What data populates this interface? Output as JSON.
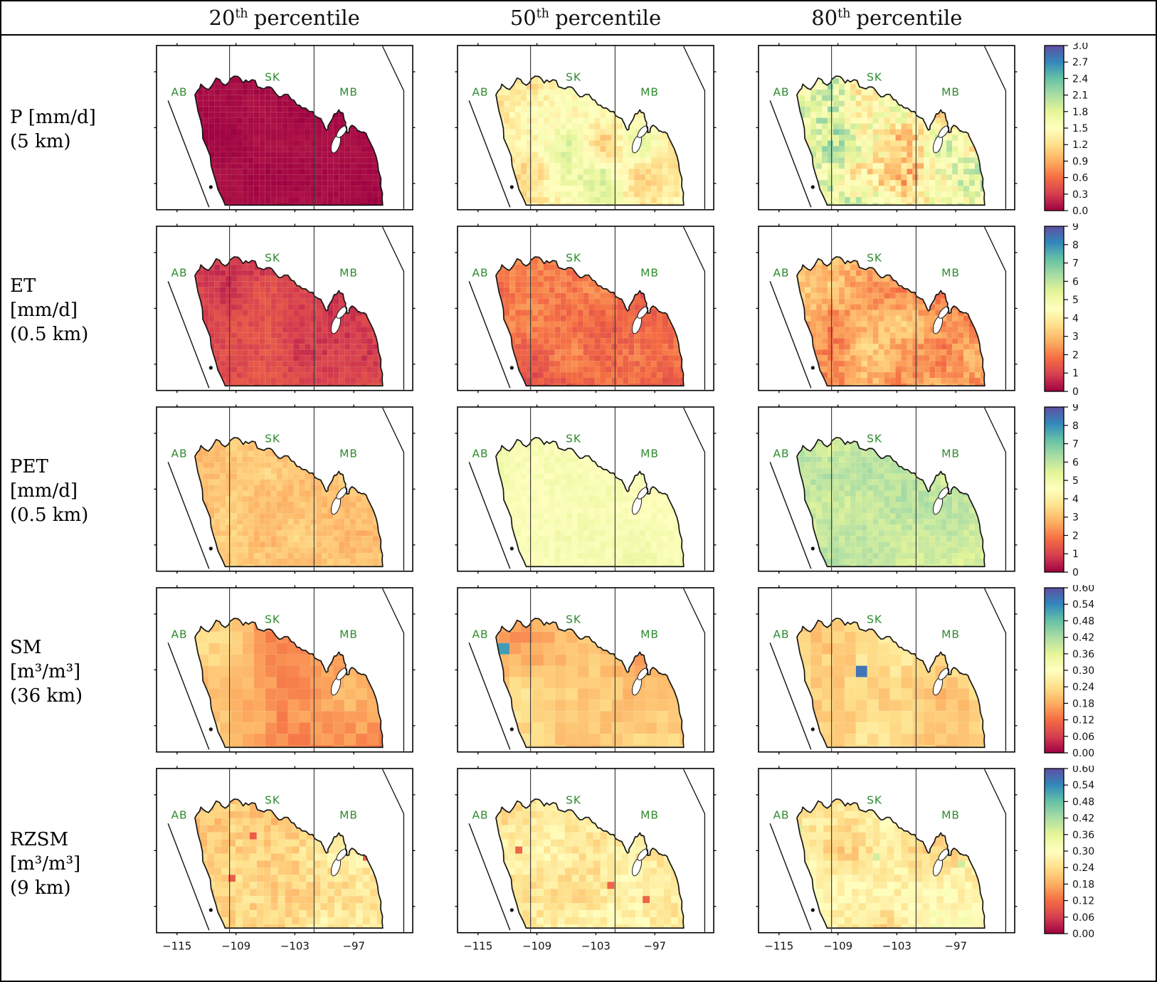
{
  "figure": {
    "column_titles": [
      {
        "num": "20",
        "sup": "th",
        "rest": "percentile"
      },
      {
        "num": "50",
        "sup": "th",
        "rest": "percentile"
      },
      {
        "num": "80",
        "sup": "th",
        "rest": "percentile"
      }
    ],
    "province_labels": [
      "AB",
      "SK",
      "MB"
    ],
    "province_label_color": "#2e8b2e"
  },
  "chart_data": {
    "type": "heatmap",
    "layout": "5 variable rows x 3 percentile columns of Canadian Prairie maps (AB/SK/MB), one shared colorbar per row, x tick labels on bottom row only",
    "x_tick_labels": [
      "−115",
      "−109",
      "−103",
      "−97"
    ],
    "colormap": {
      "name": "Spectral (reversed: low=dark red, high=blue/purple)",
      "stops": [
        "#9e0142",
        "#d53e4f",
        "#f46d43",
        "#fdae61",
        "#fee08b",
        "#ffffbf",
        "#e6f598",
        "#abdda4",
        "#66c2a5",
        "#3288bd",
        "#5e4fa2"
      ]
    },
    "rows": [
      {
        "variable": "P",
        "label_lines": [
          "P [mm/d]",
          "(5 km)"
        ],
        "resolution_km": 5,
        "colorbar": {
          "min": 0.0,
          "max": 3.0,
          "tick_labels": [
            "3.0",
            "2.7",
            "2.4",
            "2.1",
            "1.8",
            "1.5",
            "1.2",
            "0.9",
            "0.6",
            "0.3",
            "0.0"
          ]
        },
        "panels": [
          {
            "percentile": 20,
            "approx_mean": 0.05,
            "approx_spread": 0.04,
            "speckle": 0.03
          },
          {
            "percentile": 50,
            "approx_mean": 1.45,
            "approx_spread": 0.38,
            "speckle": 0.16
          },
          {
            "percentile": 80,
            "approx_mean": 1.5,
            "approx_spread": 0.55,
            "speckle": 0.35,
            "west_bias": 0.55
          }
        ]
      },
      {
        "variable": "ET",
        "label_lines": [
          "ET",
          "[mm/d]",
          "(0.5 km)"
        ],
        "resolution_km": 0.5,
        "colorbar": {
          "min": 0,
          "max": 9,
          "tick_labels": [
            "9",
            "8",
            "7",
            "6",
            "5",
            "4",
            "3",
            "2",
            "1",
            "0"
          ]
        },
        "panels": [
          {
            "percentile": 20,
            "approx_mean": 1.0,
            "approx_spread": 0.35,
            "speckle": 0.25
          },
          {
            "percentile": 50,
            "approx_mean": 1.7,
            "approx_spread": 0.5,
            "speckle": 0.35
          },
          {
            "percentile": 80,
            "approx_mean": 2.6,
            "approx_spread": 0.6,
            "speckle": 0.5
          }
        ]
      },
      {
        "variable": "PET",
        "label_lines": [
          "PET",
          "[mm/d]",
          "(0.5 km)"
        ],
        "resolution_km": 0.5,
        "colorbar": {
          "min": 0,
          "max": 9,
          "tick_labels": [
            "9",
            "8",
            "7",
            "6",
            "5",
            "4",
            "3",
            "2",
            "1",
            "0"
          ]
        },
        "panels": [
          {
            "percentile": 20,
            "approx_mean": 3.1,
            "approx_spread": 0.3,
            "speckle": 0.28
          },
          {
            "percentile": 50,
            "approx_mean": 4.7,
            "approx_spread": 0.3,
            "speckle": 0.25
          },
          {
            "percentile": 80,
            "approx_mean": 5.9,
            "approx_spread": 0.35,
            "speckle": 0.3
          }
        ]
      },
      {
        "variable": "SM",
        "label_lines": [
          "SM",
          "[m³/m³]",
          "(36 km)"
        ],
        "resolution_km": 36,
        "colorbar": {
          "min": 0.0,
          "max": 0.6,
          "tick_labels": [
            "0.60",
            "0.54",
            "0.48",
            "0.42",
            "0.36",
            "0.30",
            "0.24",
            "0.18",
            "0.12",
            "0.06",
            "0.00"
          ]
        },
        "panels": [
          {
            "percentile": 20,
            "approx_mean": 0.185,
            "approx_spread": 0.055,
            "speckle": 0.02
          },
          {
            "percentile": 50,
            "approx_mean": 0.205,
            "approx_spread": 0.045,
            "speckle": 0.02,
            "outliers": {
              "prob": 0.006,
              "value": 0.52
            }
          },
          {
            "percentile": 80,
            "approx_mean": 0.235,
            "approx_spread": 0.05,
            "speckle": 0.025,
            "outliers": {
              "prob": 0.012,
              "value": 0.56
            }
          }
        ]
      },
      {
        "variable": "RZSM",
        "label_lines": [
          "RZSM",
          "[m³/m³]",
          "(9 km)"
        ],
        "resolution_km": 9,
        "colorbar": {
          "min": 0.0,
          "max": 0.6,
          "tick_labels": [
            "0.60",
            "0.54",
            "0.48",
            "0.42",
            "0.36",
            "0.30",
            "0.24",
            "0.18",
            "0.12",
            "0.06",
            "0.00"
          ]
        },
        "panels": [
          {
            "percentile": 20,
            "approx_mean": 0.235,
            "approx_spread": 0.04,
            "speckle": 0.03,
            "outliers": {
              "prob": 0.012,
              "value": 0.1
            }
          },
          {
            "percentile": 50,
            "approx_mean": 0.25,
            "approx_spread": 0.035,
            "speckle": 0.03,
            "outliers": {
              "prob": 0.006,
              "value": 0.11
            }
          },
          {
            "percentile": 80,
            "approx_mean": 0.265,
            "approx_spread": 0.045,
            "speckle": 0.03,
            "outliers": {
              "prob": 0.007,
              "value": 0.38
            }
          }
        ]
      }
    ]
  }
}
